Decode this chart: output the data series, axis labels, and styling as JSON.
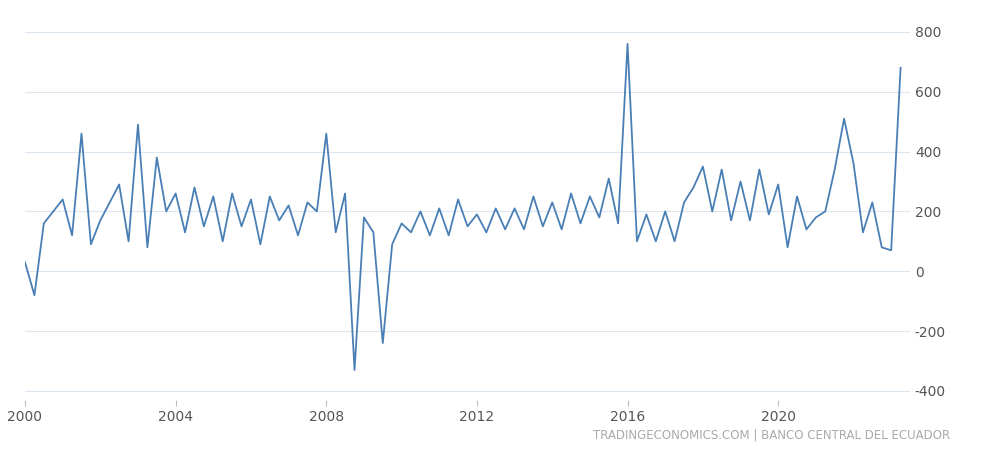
{
  "title": "",
  "watermark": "TRADINGECONOMICS.COM | BANCO CENTRAL DEL ECUADOR",
  "line_color": "#4a7fb5",
  "background_color": "#ffffff",
  "grid_color": "#dce6f0",
  "xlim": [
    2000.0,
    2023.5
  ],
  "ylim": [
    -430,
    860
  ],
  "yticks": [
    -400,
    -200,
    0,
    200,
    400,
    600,
    800
  ],
  "xticks": [
    2000,
    2004,
    2008,
    2012,
    2016,
    2020
  ],
  "series": {
    "dates": [
      2000.0,
      2000.25,
      2000.5,
      2000.75,
      2001.0,
      2001.25,
      2001.5,
      2001.75,
      2002.0,
      2002.25,
      2002.5,
      2002.75,
      2003.0,
      2003.25,
      2003.5,
      2003.75,
      2004.0,
      2004.25,
      2004.5,
      2004.75,
      2005.0,
      2005.25,
      2005.5,
      2005.75,
      2006.0,
      2006.25,
      2006.5,
      2006.75,
      2007.0,
      2007.25,
      2007.5,
      2007.75,
      2008.0,
      2008.25,
      2008.5,
      2008.75,
      2009.0,
      2009.25,
      2009.5,
      2009.75,
      2010.0,
      2010.25,
      2010.5,
      2010.75,
      2011.0,
      2011.25,
      2011.5,
      2011.75,
      2012.0,
      2012.25,
      2012.5,
      2012.75,
      2013.0,
      2013.25,
      2013.5,
      2013.75,
      2014.0,
      2014.25,
      2014.5,
      2014.75,
      2015.0,
      2015.25,
      2015.5,
      2015.75,
      2016.0,
      2016.25,
      2016.5,
      2016.75,
      2017.0,
      2017.25,
      2017.5,
      2017.75,
      2018.0,
      2018.25,
      2018.5,
      2018.75,
      2019.0,
      2019.25,
      2019.5,
      2019.75,
      2020.0,
      2020.25,
      2020.5,
      2020.75,
      2021.0,
      2021.25,
      2021.5,
      2021.75,
      2022.0,
      2022.25,
      2022.5,
      2022.75,
      2023.0,
      2023.25
    ],
    "values": [
      30,
      -80,
      160,
      200,
      240,
      120,
      460,
      90,
      170,
      230,
      290,
      100,
      490,
      80,
      380,
      200,
      260,
      130,
      280,
      150,
      250,
      100,
      260,
      150,
      240,
      90,
      250,
      170,
      220,
      120,
      230,
      200,
      460,
      130,
      260,
      -330,
      180,
      130,
      -240,
      90,
      160,
      130,
      200,
      120,
      210,
      120,
      240,
      150,
      190,
      130,
      210,
      140,
      210,
      140,
      250,
      150,
      230,
      140,
      260,
      160,
      250,
      180,
      310,
      160,
      760,
      100,
      190,
      100,
      200,
      100,
      230,
      280,
      350,
      200,
      340,
      170,
      300,
      170,
      340,
      190,
      290,
      80,
      250,
      140,
      180,
      200,
      340,
      510,
      360,
      130,
      230,
      80,
      70,
      680
    ]
  }
}
